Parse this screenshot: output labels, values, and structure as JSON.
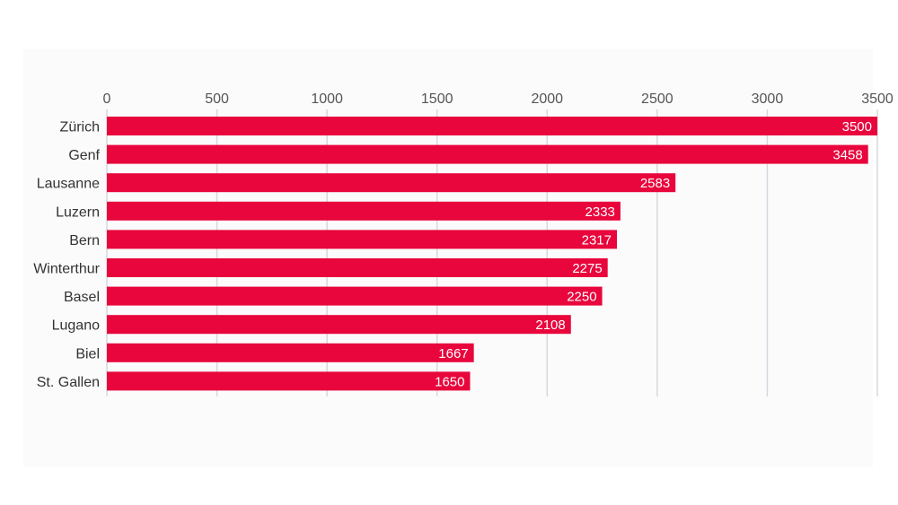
{
  "chart_data": {
    "type": "bar",
    "orientation": "horizontal",
    "categories": [
      "Zürich",
      "Genf",
      "Lausanne",
      "Luzern",
      "Bern",
      "Winterthur",
      "Basel",
      "Lugano",
      "Biel",
      "St. Gallen"
    ],
    "values": [
      3500,
      3458,
      2583,
      2333,
      2317,
      2275,
      2250,
      2108,
      1667,
      1650
    ],
    "data_labels": [
      "3500",
      "3458",
      "2583",
      "2333",
      "2317",
      "2275",
      "2250",
      "2108",
      "1667",
      "1650"
    ],
    "xticks": [
      0,
      500,
      1000,
      1500,
      2000,
      2500,
      3000,
      3500
    ],
    "xtick_labels": [
      "0",
      "500",
      "1000",
      "1500",
      "2000",
      "2500",
      "3000",
      "3500"
    ],
    "xlim": [
      0,
      3500
    ],
    "xaxis_position": "top",
    "grid": true,
    "title": "",
    "xlabel": "",
    "ylabel": "",
    "colors": {
      "bar": "#e8063c",
      "grid": "#d7d7e0",
      "value_text": "#ffffff",
      "background": "#fbfbfb"
    }
  }
}
